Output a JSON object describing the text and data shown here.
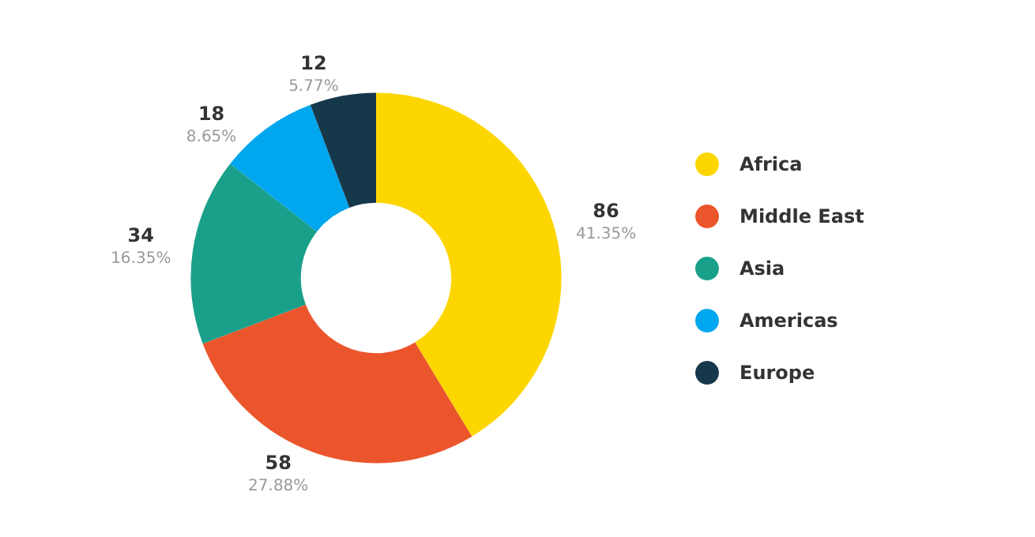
{
  "chart_data": {
    "type": "donut",
    "categories": [
      "Africa",
      "Middle East",
      "Asia",
      "Americas",
      "Europe"
    ],
    "values": [
      86,
      58,
      34,
      18,
      12
    ],
    "colors": [
      "#fdd600",
      "#eb552b",
      "#1aa08a",
      "#00a6ee",
      "#16384b"
    ],
    "value_labels": [
      "86\n41.35%",
      "58\n27.88%",
      "34\n16.35%",
      "18\n8.65%",
      "12\n5.77%"
    ],
    "legend": "right"
  }
}
